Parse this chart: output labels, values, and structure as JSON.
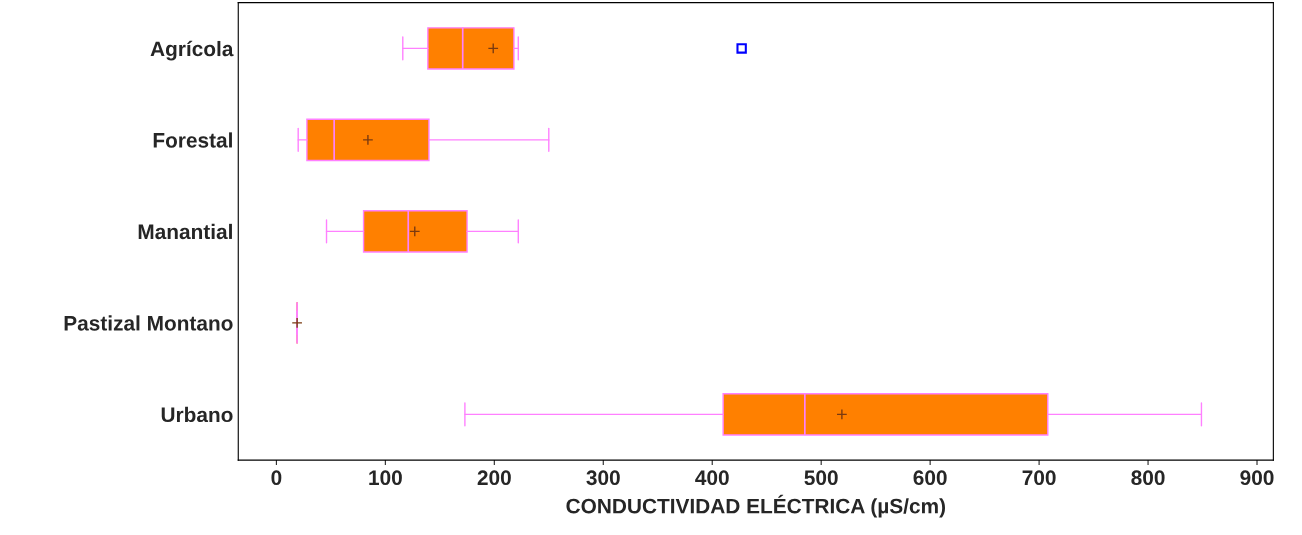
{
  "chart_data": {
    "type": "box",
    "orientation": "horizontal",
    "categories": [
      "Agrícola",
      "Forestal",
      "Manantial",
      "Pastizal Montano",
      "Urbano"
    ],
    "xlabel": "CONDUCTIVIDAD ELÉCTRICA (µS/cm)",
    "xlim": [
      -35,
      915
    ],
    "xticks": [
      0,
      100,
      200,
      300,
      400,
      500,
      600,
      700,
      800,
      900
    ],
    "grid": false,
    "color": "#ff8000",
    "boxes": [
      {
        "low": 116,
        "q1": 139,
        "median": 171,
        "q3": 218,
        "high": 222,
        "mean": 199,
        "outliers": [
          427
        ]
      },
      {
        "low": 20,
        "q1": 28,
        "median": 53,
        "q3": 140,
        "high": 250,
        "mean": 84
      },
      {
        "low": 46,
        "q1": 80,
        "median": 121,
        "q3": 175,
        "high": 222,
        "mean": 127
      },
      {
        "low": 19,
        "q1": 19,
        "median": 19,
        "q3": 19,
        "high": 19,
        "mean": 19
      },
      {
        "low": 173,
        "q1": 410,
        "median": 485,
        "q3": 708,
        "high": 849,
        "mean": 519
      }
    ]
  }
}
